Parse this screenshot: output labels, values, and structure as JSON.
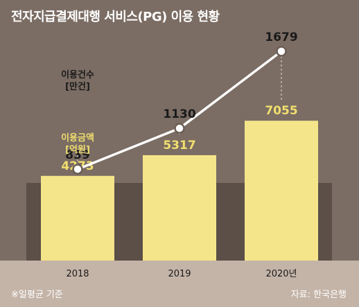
{
  "chart_data": {
    "type": "bar",
    "title": "전자지급결제대행 서비스(PG) 이용 현황",
    "categories": [
      "2018",
      "2019",
      "2020년"
    ],
    "series": [
      {
        "name": "이용금액 [억원]",
        "type": "bar",
        "values": [
          4273,
          5317,
          7055
        ]
      },
      {
        "name": "이용건수 [만건]",
        "type": "line",
        "values": [
          839,
          1130,
          1679
        ]
      }
    ],
    "series_labels": [
      [
        "이용금액",
        "[억원]"
      ],
      [
        "이용건수",
        "[만건]"
      ]
    ],
    "footnote": "※일평균 기준",
    "source": "자료: 한국은행",
    "colors": {
      "background": "#7b6d64",
      "band": "#5b4f47",
      "bar": "#f5e58a",
      "bar_label": "#f0df6e",
      "line": "#ffffff",
      "line_label": "#1a1a1a",
      "axis_text": "#1a1a1a"
    }
  }
}
